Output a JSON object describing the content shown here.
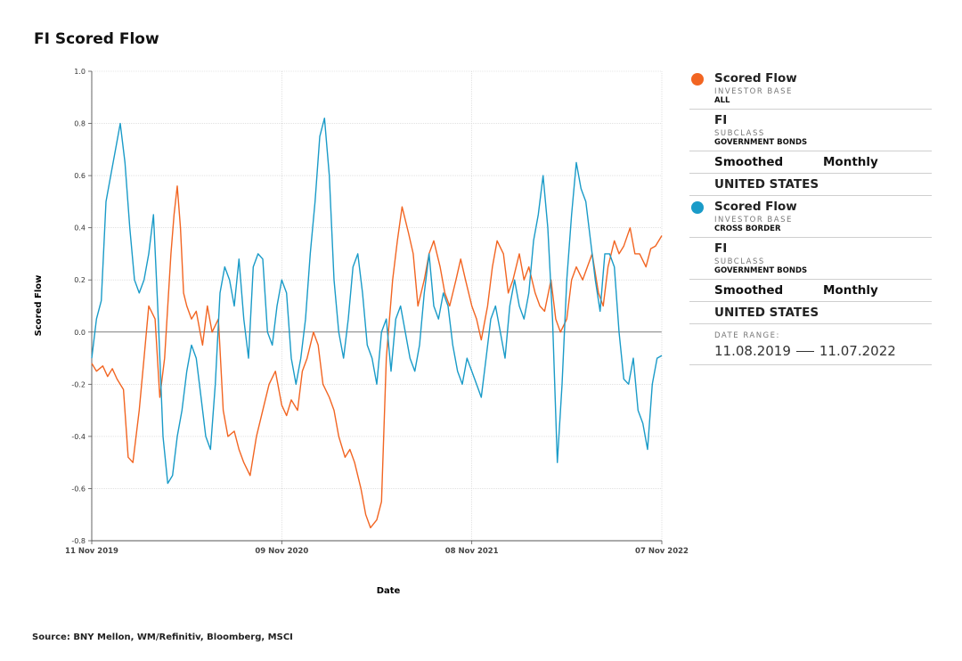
{
  "title": "FI Scored Flow",
  "source": "Source: BNY Mellon, WM/Refinitiv, Bloomberg, MSCI",
  "legend": {
    "series": [
      {
        "name": "Scored Flow",
        "color": "#f26522",
        "investor_base_label": "INVESTOR BASE",
        "investor_base": "ALL",
        "asset": "FI",
        "subclass_label": "SUBCLASS",
        "subclass": "GOVERNMENT BONDS",
        "smoothing": "Smoothed",
        "frequency": "Monthly",
        "region": "UNITED STATES"
      },
      {
        "name": "Scored Flow",
        "color": "#1a9bc8",
        "investor_base_label": "INVESTOR BASE",
        "investor_base": "CROSS BORDER",
        "asset": "FI",
        "subclass_label": "SUBCLASS",
        "subclass": "GOVERNMENT BONDS",
        "smoothing": "Smoothed",
        "frequency": "Monthly",
        "region": "UNITED STATES"
      }
    ],
    "date_range_label": "DATE RANGE:",
    "date_start": "11.08.2019",
    "date_end": "11.07.2022"
  },
  "chart_data": {
    "type": "line",
    "title": "FI Scored Flow",
    "xlabel": "Date",
    "ylabel": "Scored Flow",
    "ylim": [
      -0.8,
      1.0
    ],
    "yticks": [
      -0.8,
      -0.6,
      -0.4,
      -0.2,
      0.0,
      0.2,
      0.4,
      0.6,
      0.8,
      1.0
    ],
    "ytick_labels": [
      "-0.8",
      "-0.6",
      "-0.4",
      "-0.2",
      "0.0",
      "0.2",
      "0.4",
      "0.6",
      "0.8",
      "1.0"
    ],
    "xlim": [
      0,
      36
    ],
    "xticks": [
      0,
      12,
      24,
      36
    ],
    "xtick_labels": [
      "11 Nov 2019",
      "09 Nov 2020",
      "08 Nov 2021",
      "07 Nov 2022"
    ],
    "grid": true,
    "x_units": "months since 11 Nov 2019",
    "series": [
      {
        "name": "Scored Flow — Investor Base: ALL",
        "color": "#f26522",
        "x": [
          0,
          0.3,
          0.7,
          1.0,
          1.3,
          1.6,
          2.0,
          2.3,
          2.6,
          3.0,
          3.3,
          3.6,
          4.0,
          4.3,
          4.6,
          5.0,
          5.2,
          5.4,
          5.6,
          5.8,
          6.0,
          6.3,
          6.6,
          7.0,
          7.3,
          7.6,
          8.0,
          8.3,
          8.6,
          9.0,
          9.3,
          9.6,
          10.0,
          10.4,
          10.8,
          11.2,
          11.6,
          12.0,
          12.3,
          12.6,
          13.0,
          13.3,
          13.6,
          14.0,
          14.3,
          14.6,
          15.0,
          15.3,
          15.6,
          16.0,
          16.3,
          16.6,
          17.0,
          17.3,
          17.6,
          18.0,
          18.3,
          18.6,
          19.0,
          19.3,
          19.6,
          20.0,
          20.3,
          20.6,
          21.0,
          21.3,
          21.6,
          22.0,
          22.3,
          22.6,
          23.0,
          23.3,
          23.6,
          24.0,
          24.3,
          24.6,
          25.0,
          25.3,
          25.6,
          26.0,
          26.3,
          26.6,
          27.0,
          27.3,
          27.6,
          28.0,
          28.3,
          28.6,
          29.0,
          29.3,
          29.6,
          30.0,
          30.3,
          30.6,
          31.0,
          31.3,
          31.6,
          32.0,
          32.3,
          32.6,
          33.0,
          33.3,
          33.6,
          34.0,
          34.3,
          34.6,
          35.0,
          35.3,
          35.6,
          36.0
        ],
        "values": [
          -0.12,
          -0.15,
          -0.13,
          -0.17,
          -0.14,
          -0.18,
          -0.22,
          -0.48,
          -0.5,
          -0.3,
          -0.1,
          0.1,
          0.05,
          -0.25,
          -0.1,
          0.3,
          0.45,
          0.56,
          0.4,
          0.15,
          0.1,
          0.05,
          0.08,
          -0.05,
          0.1,
          0.0,
          0.05,
          -0.3,
          -0.4,
          -0.38,
          -0.45,
          -0.5,
          -0.55,
          -0.4,
          -0.3,
          -0.2,
          -0.15,
          -0.28,
          -0.32,
          -0.26,
          -0.3,
          -0.15,
          -0.1,
          0.0,
          -0.05,
          -0.2,
          -0.25,
          -0.3,
          -0.4,
          -0.48,
          -0.45,
          -0.5,
          -0.6,
          -0.7,
          -0.75,
          -0.72,
          -0.65,
          -0.1,
          0.2,
          0.35,
          0.48,
          0.38,
          0.3,
          0.1,
          0.2,
          0.3,
          0.35,
          0.25,
          0.15,
          0.1,
          0.2,
          0.28,
          0.2,
          0.1,
          0.05,
          -0.03,
          0.1,
          0.25,
          0.35,
          0.3,
          0.15,
          0.2,
          0.3,
          0.2,
          0.25,
          0.15,
          0.1,
          0.08,
          0.2,
          0.05,
          0.0,
          0.05,
          0.2,
          0.25,
          0.2,
          0.25,
          0.3,
          0.15,
          0.1,
          0.25,
          0.35,
          0.3,
          0.33,
          0.4,
          0.3,
          0.3,
          0.25,
          0.32,
          0.33,
          0.37
        ]
      },
      {
        "name": "Scored Flow — Investor Base: CROSS BORDER",
        "color": "#1a9bc8",
        "x": [
          0,
          0.3,
          0.6,
          0.9,
          1.2,
          1.5,
          1.8,
          2.1,
          2.4,
          2.7,
          3.0,
          3.3,
          3.6,
          3.9,
          4.2,
          4.5,
          4.8,
          5.1,
          5.4,
          5.7,
          6.0,
          6.3,
          6.6,
          6.9,
          7.2,
          7.5,
          7.8,
          8.1,
          8.4,
          8.7,
          9.0,
          9.3,
          9.6,
          9.9,
          10.2,
          10.5,
          10.8,
          11.1,
          11.4,
          11.7,
          12.0,
          12.3,
          12.6,
          12.9,
          13.2,
          13.5,
          13.8,
          14.1,
          14.4,
          14.7,
          15.0,
          15.3,
          15.6,
          15.9,
          16.2,
          16.5,
          16.8,
          17.1,
          17.4,
          17.7,
          18.0,
          18.3,
          18.6,
          18.9,
          19.2,
          19.5,
          19.8,
          20.1,
          20.4,
          20.7,
          21.0,
          21.3,
          21.6,
          21.9,
          22.2,
          22.5,
          22.8,
          23.1,
          23.4,
          23.7,
          24.0,
          24.3,
          24.6,
          24.9,
          25.2,
          25.5,
          25.8,
          26.1,
          26.4,
          26.7,
          27.0,
          27.3,
          27.6,
          27.9,
          28.2,
          28.5,
          28.8,
          29.1,
          29.4,
          29.7,
          30.0,
          30.3,
          30.6,
          30.9,
          31.2,
          31.5,
          31.8,
          32.1,
          32.4,
          32.7,
          33.0,
          33.3,
          33.6,
          33.9,
          34.2,
          34.5,
          34.8,
          35.1,
          35.4,
          35.7,
          36.0
        ],
        "values": [
          -0.1,
          0.05,
          0.12,
          0.5,
          0.6,
          0.7,
          0.8,
          0.65,
          0.4,
          0.2,
          0.15,
          0.2,
          0.3,
          0.45,
          0.05,
          -0.4,
          -0.58,
          -0.55,
          -0.4,
          -0.3,
          -0.15,
          -0.05,
          -0.1,
          -0.25,
          -0.4,
          -0.45,
          -0.2,
          0.15,
          0.25,
          0.2,
          0.1,
          0.28,
          0.05,
          -0.1,
          0.25,
          0.3,
          0.28,
          0.0,
          -0.05,
          0.1,
          0.2,
          0.15,
          -0.1,
          -0.2,
          -0.1,
          0.05,
          0.3,
          0.5,
          0.75,
          0.82,
          0.6,
          0.2,
          0.0,
          -0.1,
          0.05,
          0.25,
          0.3,
          0.15,
          -0.05,
          -0.1,
          -0.2,
          0.0,
          0.05,
          -0.15,
          0.05,
          0.1,
          0.0,
          -0.1,
          -0.15,
          -0.05,
          0.15,
          0.3,
          0.1,
          0.05,
          0.15,
          0.1,
          -0.05,
          -0.15,
          -0.2,
          -0.1,
          -0.15,
          -0.2,
          -0.25,
          -0.1,
          0.05,
          0.1,
          0.0,
          -0.1,
          0.1,
          0.2,
          0.1,
          0.05,
          0.15,
          0.35,
          0.45,
          0.6,
          0.4,
          0.05,
          -0.5,
          -0.2,
          0.2,
          0.45,
          0.65,
          0.55,
          0.5,
          0.35,
          0.2,
          0.08,
          0.3,
          0.3,
          0.25,
          0.0,
          -0.18,
          -0.2,
          -0.1,
          -0.3,
          -0.35,
          -0.45,
          -0.2,
          -0.1,
          -0.09
        ]
      }
    ]
  }
}
